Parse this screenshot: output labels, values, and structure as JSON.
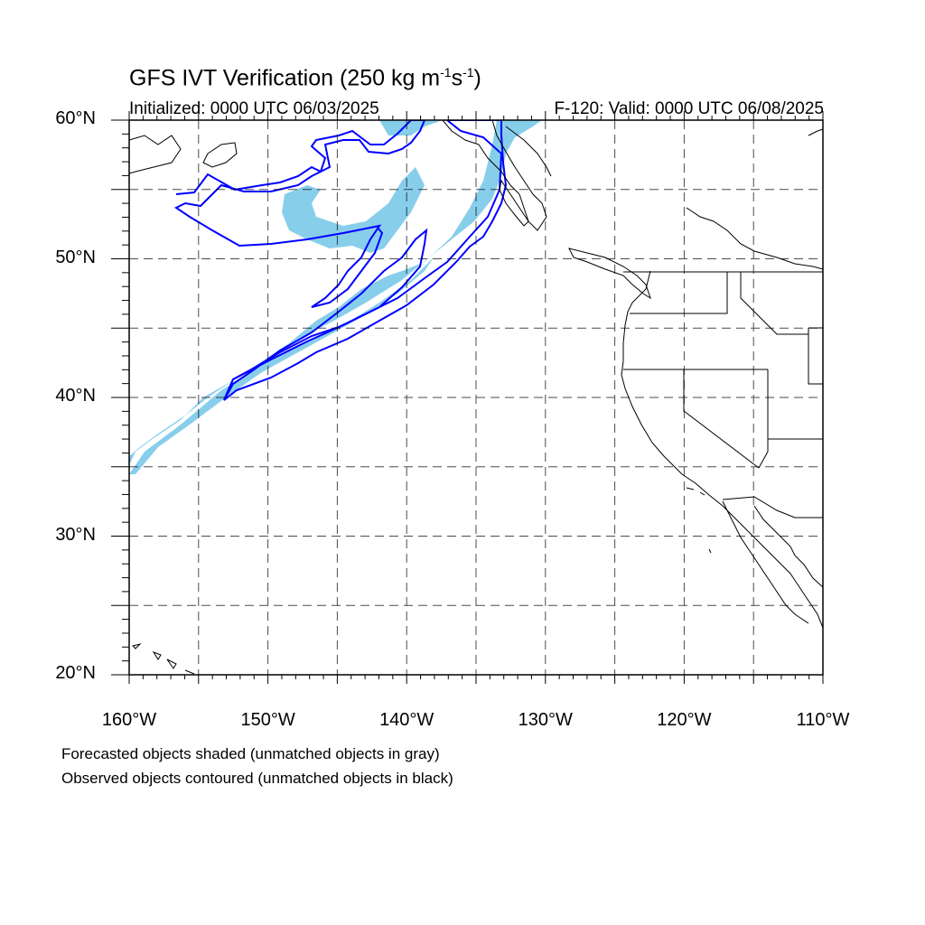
{
  "header": {
    "title_prefix": "GFS IVT Verification (250 kg m",
    "title_sup1": "-1",
    "title_mid": "s",
    "title_sup2": "-1",
    "title_suffix": ")",
    "initialized": "Initialized: 0000 UTC 06/03/2025",
    "valid": "F-120: Valid: 0000 UTC 06/08/2025"
  },
  "map": {
    "lon_range": [
      -160,
      -110
    ],
    "lat_range": [
      20,
      60
    ],
    "lat_labels": [
      "60°N",
      "50°N",
      "40°N",
      "30°N",
      "20°N"
    ],
    "lon_labels": [
      "160°W",
      "150°W",
      "140°W",
      "130°W",
      "120°W",
      "110°W"
    ],
    "forecast_color": "#87ceeb",
    "observed_color": "#0000ff",
    "grid_style": "dashed"
  },
  "footer": {
    "line1": "Forecasted objects shaded (unmatched objects in gray)",
    "line2": "Observed objects contoured (unmatched objects in black)"
  }
}
